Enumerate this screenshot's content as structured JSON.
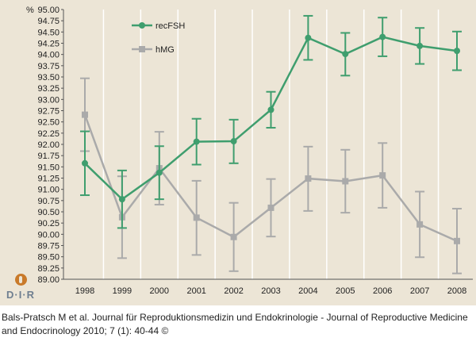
{
  "chart_data": {
    "type": "line",
    "categories": [
      "1998",
      "1999",
      "2000",
      "2001",
      "2002",
      "2003",
      "2004",
      "2005",
      "2006",
      "2007",
      "2008"
    ],
    "series": [
      {
        "name": "recFSH",
        "color": "#3f9e6e",
        "values": [
          91.58,
          90.78,
          91.37,
          92.06,
          92.07,
          92.77,
          94.37,
          94.01,
          94.39,
          94.19,
          94.08
        ],
        "error_low": [
          90.87,
          90.14,
          90.78,
          91.55,
          91.58,
          92.37,
          93.88,
          93.53,
          93.96,
          93.79,
          93.65
        ],
        "error_high": [
          92.29,
          91.42,
          91.96,
          92.57,
          92.55,
          93.17,
          94.86,
          94.48,
          94.82,
          94.59,
          94.51
        ]
      },
      {
        "name": "hMG",
        "color": "#aaaaaa",
        "values": [
          92.66,
          90.38,
          91.47,
          90.37,
          89.94,
          90.59,
          91.24,
          91.18,
          91.31,
          90.22,
          89.85
        ],
        "error_low": [
          91.85,
          89.47,
          90.66,
          89.54,
          89.18,
          89.95,
          90.52,
          90.48,
          90.59,
          89.49,
          89.13
        ],
        "error_high": [
          93.47,
          91.29,
          92.28,
          91.19,
          90.7,
          91.23,
          91.95,
          91.88,
          92.03,
          90.95,
          90.57
        ]
      }
    ],
    "ylabel": "%",
    "ylim": [
      89.0,
      95.0
    ],
    "yticks": [
      "89.00",
      "89.25",
      "89.50",
      "89.75",
      "90.00",
      "90.25",
      "90.50",
      "90.75",
      "91.00",
      "91.25",
      "91.50",
      "91.75",
      "92.00",
      "92.25",
      "92.50",
      "92.75",
      "93.00",
      "93.25",
      "93.50",
      "93.75",
      "94.00",
      "94.25",
      "94.50",
      "94.75",
      "95.00"
    ],
    "grid": "vertical",
    "legend_position": "top-left"
  },
  "logo_text": "D·I·R",
  "caption": "Bals-Pratsch M et al. Journal für Reproduktionsmedizin und Endokrinologie - Journal of Reproductive Medicine and Endocrinology 2010; 7 (1): 40-44 ©",
  "colors": {
    "panel": "#ece5d6",
    "grid": "#ffffff",
    "axis": "#555555"
  }
}
